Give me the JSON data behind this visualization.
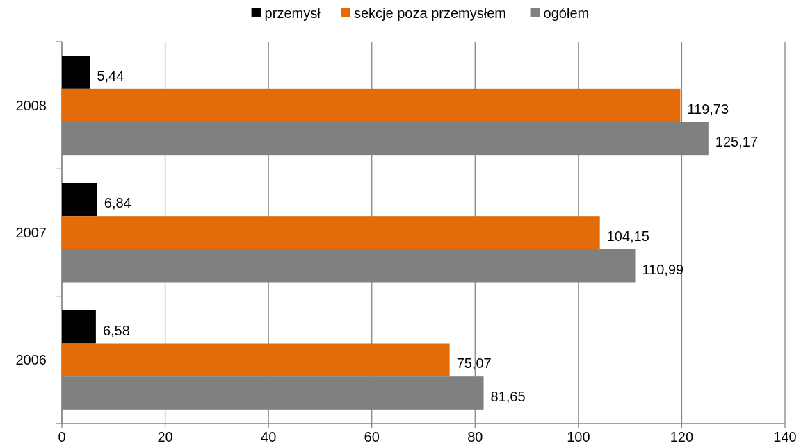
{
  "chart_data": {
    "type": "bar",
    "orientation": "horizontal",
    "categories": [
      "2008",
      "2007",
      "2006"
    ],
    "series": [
      {
        "name": "przemysł",
        "color": "#000000",
        "values": [
          5.44,
          6.84,
          6.58
        ],
        "value_labels": [
          "5,44",
          "6,84",
          "6,58"
        ]
      },
      {
        "name": "sekcje poza przemysłem",
        "color": "#e36c09",
        "values": [
          119.73,
          104.15,
          75.07
        ],
        "value_labels": [
          "119,73",
          "104,15",
          "75,07"
        ]
      },
      {
        "name": "ogółem",
        "color": "#808080",
        "values": [
          125.17,
          110.99,
          81.65
        ],
        "value_labels": [
          "125,17",
          "110,99",
          "81,65"
        ]
      }
    ],
    "xlim": [
      0,
      140
    ],
    "xticks": [
      0,
      20,
      40,
      60,
      80,
      100,
      120,
      140
    ],
    "grid": "x",
    "legend": "top"
  }
}
